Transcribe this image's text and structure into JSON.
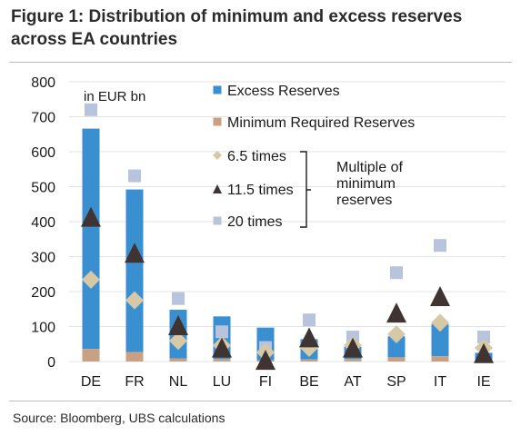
{
  "title": "Figure 1: Distribution of minimum and excess reserves across EA countries",
  "source": "Source:  Bloomberg, UBS calculations",
  "colors": {
    "excess": "#3a8fd0",
    "minimum": "#c8a083",
    "times6_5": "#d8c9a6",
    "times11_5": "#3f3431",
    "times20": "#b8c3de"
  },
  "chart_data": {
    "type": "bar",
    "unit_note": "in EUR bn",
    "ylim": [
      0,
      800
    ],
    "yticks": [
      0,
      100,
      200,
      300,
      400,
      500,
      600,
      700,
      800
    ],
    "categories": [
      "DE",
      "FR",
      "NL",
      "LU",
      "FI",
      "BE",
      "AT",
      "SP",
      "IT",
      "IE"
    ],
    "stacked_series": [
      {
        "name": "Minimum Required Reserves",
        "values": [
          36,
          27,
          9,
          7,
          4,
          6,
          7,
          12,
          15,
          6
        ]
      },
      {
        "name": "Excess Reserves",
        "values": [
          630,
          465,
          139,
          122,
          93,
          58,
          35,
          60,
          92,
          19
        ]
      }
    ],
    "marker_series": [
      {
        "name": "6.5 times",
        "marker": "diamond",
        "values": [
          234,
          175,
          59,
          46,
          26,
          39,
          46,
          78,
          111,
          39
        ]
      },
      {
        "name": "11.5 times",
        "marker": "triangle",
        "values": [
          414,
          311,
          104,
          40,
          5,
          69,
          40,
          140,
          187,
          24
        ]
      },
      {
        "name": "20 times",
        "marker": "square",
        "values": [
          720,
          531,
          180,
          85,
          40,
          119,
          70,
          254,
          332,
          70
        ]
      }
    ],
    "legend": [
      {
        "label": "Excess Reserves",
        "marker": "square-blue"
      },
      {
        "label": "Minimum Required Reserves",
        "marker": "square-tan"
      },
      {
        "label": "6.5 times",
        "marker": "diamond"
      },
      {
        "label": "11.5 times",
        "marker": "triangle"
      },
      {
        "label": "20 times",
        "marker": "square"
      }
    ],
    "annotation": [
      "Multiple of",
      "minimum",
      "reserves"
    ],
    "legend_position": "top-right"
  }
}
